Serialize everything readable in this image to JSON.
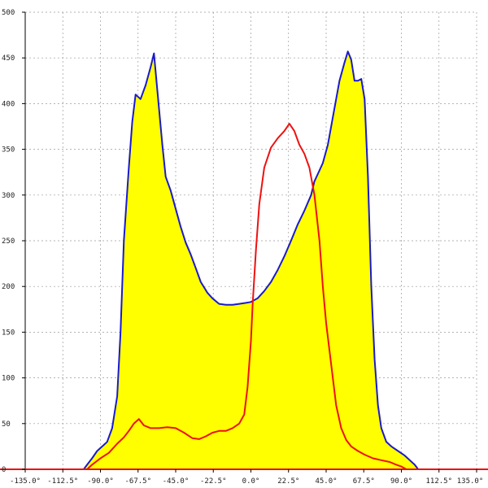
{
  "chart_data": {
    "type": "area",
    "title": "",
    "xlabel": "",
    "ylabel": "",
    "xlim": [
      -135,
      135
    ],
    "ylim": [
      0,
      500
    ],
    "x_ticks": [
      -135,
      -112.5,
      -90,
      -67.5,
      -45,
      -22.5,
      0,
      22.5,
      45,
      67.5,
      90,
      112.5,
      135
    ],
    "x_tick_labels": [
      "-135.0°",
      "-112.5°",
      "-90.0°",
      "-67.5°",
      "-45.0°",
      "-22.5°",
      "0.0°",
      "22.5°",
      "45.0°",
      "67.5°",
      "90.0°",
      "112.5°",
      "135.0°"
    ],
    "y_ticks": [
      0,
      50,
      100,
      150,
      200,
      250,
      300,
      350,
      400,
      450,
      500
    ],
    "y_tick_labels": [
      "0",
      "50",
      "100",
      "150",
      "200",
      "250",
      "300",
      "350",
      "400",
      "450",
      "500"
    ],
    "grid": true,
    "series": [
      {
        "color": "#1a1acc",
        "fill": "#ffff00",
        "points": [
          [
            -135,
            0
          ],
          [
            -100,
            0
          ],
          [
            -98,
            5
          ],
          [
            -95,
            12
          ],
          [
            -92,
            20
          ],
          [
            -89,
            25
          ],
          [
            -86,
            30
          ],
          [
            -83,
            45
          ],
          [
            -80,
            80
          ],
          [
            -78,
            150
          ],
          [
            -76,
            250
          ],
          [
            -73,
            330
          ],
          [
            -71,
            380
          ],
          [
            -69,
            410
          ],
          [
            -66,
            405
          ],
          [
            -63,
            420
          ],
          [
            -60,
            440
          ],
          [
            -58,
            455
          ],
          [
            -56,
            415
          ],
          [
            -53,
            355
          ],
          [
            -51,
            320
          ],
          [
            -48,
            305
          ],
          [
            -45,
            285
          ],
          [
            -42,
            265
          ],
          [
            -39,
            248
          ],
          [
            -36,
            235
          ],
          [
            -33,
            220
          ],
          [
            -30,
            205
          ],
          [
            -26,
            193
          ],
          [
            -23,
            187
          ],
          [
            -19,
            181
          ],
          [
            -15,
            180
          ],
          [
            -11,
            180
          ],
          [
            -7,
            181
          ],
          [
            -3,
            182
          ],
          [
            0,
            183
          ],
          [
            4,
            187
          ],
          [
            8,
            195
          ],
          [
            12,
            205
          ],
          [
            16,
            218
          ],
          [
            20,
            233
          ],
          [
            24,
            250
          ],
          [
            28,
            268
          ],
          [
            32,
            283
          ],
          [
            36,
            300
          ],
          [
            38,
            315
          ],
          [
            41,
            327
          ],
          [
            43,
            335
          ],
          [
            46,
            355
          ],
          [
            49,
            385
          ],
          [
            51,
            405
          ],
          [
            53,
            425
          ],
          [
            56,
            445
          ],
          [
            58,
            457
          ],
          [
            60,
            448
          ],
          [
            62,
            425
          ],
          [
            64,
            425
          ],
          [
            66,
            427
          ],
          [
            68,
            405
          ],
          [
            70,
            320
          ],
          [
            72,
            200
          ],
          [
            74,
            120
          ],
          [
            76,
            70
          ],
          [
            78,
            45
          ],
          [
            81,
            30
          ],
          [
            84,
            25
          ],
          [
            88,
            20
          ],
          [
            92,
            15
          ],
          [
            95,
            10
          ],
          [
            98,
            5
          ],
          [
            100,
            0
          ],
          [
            135,
            0
          ]
        ]
      },
      {
        "color": "#ee1111",
        "points": [
          [
            -135,
            0
          ],
          [
            -98,
            0
          ],
          [
            -95,
            5
          ],
          [
            -90,
            12
          ],
          [
            -85,
            18
          ],
          [
            -80,
            28
          ],
          [
            -76,
            35
          ],
          [
            -73,
            42
          ],
          [
            -70,
            50
          ],
          [
            -67,
            55
          ],
          [
            -64,
            48
          ],
          [
            -60,
            45
          ],
          [
            -55,
            45
          ],
          [
            -50,
            46
          ],
          [
            -45,
            45
          ],
          [
            -40,
            40
          ],
          [
            -35,
            34
          ],
          [
            -31,
            33
          ],
          [
            -27,
            36
          ],
          [
            -23,
            40
          ],
          [
            -19,
            42
          ],
          [
            -15,
            42
          ],
          [
            -11,
            45
          ],
          [
            -7,
            50
          ],
          [
            -4,
            60
          ],
          [
            -2,
            90
          ],
          [
            0,
            140
          ],
          [
            1,
            180
          ],
          [
            3,
            240
          ],
          [
            5,
            290
          ],
          [
            8,
            330
          ],
          [
            12,
            352
          ],
          [
            16,
            362
          ],
          [
            20,
            370
          ],
          [
            23,
            378
          ],
          [
            26,
            370
          ],
          [
            29,
            355
          ],
          [
            32,
            345
          ],
          [
            35,
            330
          ],
          [
            38,
            300
          ],
          [
            41,
            250
          ],
          [
            43,
            200
          ],
          [
            45,
            160
          ],
          [
            47,
            130
          ],
          [
            49,
            100
          ],
          [
            51,
            70
          ],
          [
            54,
            45
          ],
          [
            57,
            32
          ],
          [
            60,
            25
          ],
          [
            64,
            20
          ],
          [
            68,
            16
          ],
          [
            73,
            12
          ],
          [
            78,
            10
          ],
          [
            83,
            8
          ],
          [
            87,
            5
          ],
          [
            90,
            3
          ],
          [
            93,
            0
          ],
          [
            135,
            0
          ]
        ]
      }
    ]
  }
}
